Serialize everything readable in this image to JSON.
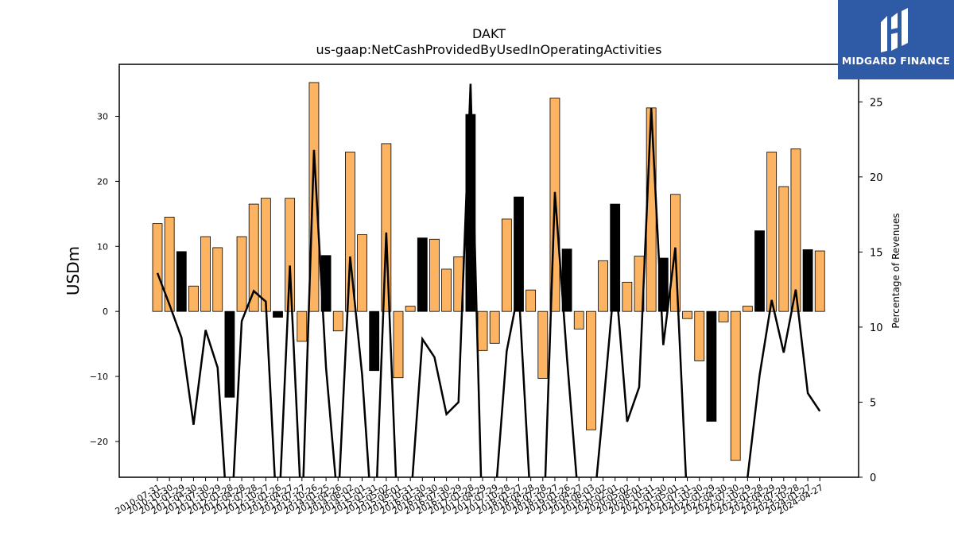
{
  "brand": {
    "name": "MIDGARD FINANCE",
    "background": "#2f5aa6"
  },
  "chart_data": {
    "type": "bar",
    "title": "DAKT",
    "subtitle": "us-gaap:NetCashProvidedByUsedInOperatingActivities",
    "ylabel": "USDm",
    "y2label": "Percentage of Revenues",
    "ylim": [
      -25.5,
      38
    ],
    "y2lim": [
      0,
      27.5
    ],
    "yticks": [
      -20,
      -10,
      0,
      10,
      20,
      30
    ],
    "y2ticks": [
      0,
      5,
      10,
      15,
      20,
      25
    ],
    "colors": {
      "bar_primary": "#fdb462",
      "bar_highlight": "#000000",
      "line": "#000000"
    },
    "categories": [
      "2010-07-31",
      "2010-10-30",
      "2011-01-29",
      "2011-04-30",
      "2011-07-30",
      "2011-10-29",
      "2012-01-28",
      "2012-04-28",
      "2012-07-28",
      "2012-10-27",
      "2013-01-26",
      "2013-04-27",
      "2013-07-27",
      "2013-10-26",
      "2014-01-25",
      "2014-04-26",
      "2014-08-02",
      "2014-11-01",
      "2015-01-31",
      "2015-05-02",
      "2015-08-01",
      "2015-10-31",
      "2016-01-30",
      "2016-04-30",
      "2016-07-30",
      "2016-10-29",
      "2017-01-28",
      "2017-04-29",
      "2017-07-29",
      "2017-10-28",
      "2018-01-27",
      "2018-04-28",
      "2018-07-28",
      "2018-10-27",
      "2019-01-26",
      "2019-04-27",
      "2019-08-03",
      "2019-11-02",
      "2020-02-01",
      "2020-05-02",
      "2020-08-01",
      "2020-10-31",
      "2021-01-30",
      "2021-05-01",
      "2021-07-31",
      "2021-10-30",
      "2022-01-29",
      "2022-04-30",
      "2022-07-30",
      "2022-10-29",
      "2023-01-28",
      "2023-04-29",
      "2023-07-29",
      "2023-10-28",
      "2024-01-27",
      "2024-04-27"
    ],
    "series": [
      {
        "kind": "bar",
        "values": [
          13.5,
          14.5,
          9.2,
          3.9,
          11.5,
          9.8,
          -13.2,
          11.5,
          16.5,
          17.4,
          -0.9,
          17.4,
          -4.6,
          35.2,
          8.6,
          -3.0,
          24.5,
          11.8,
          -9.1,
          25.8,
          -10.2,
          0.8,
          11.3,
          11.1,
          6.5,
          8.4,
          30.3,
          -6.0,
          -4.9,
          14.2,
          17.6,
          3.3,
          -10.3,
          32.8,
          9.6,
          -2.7,
          -18.2,
          7.8,
          16.5,
          4.5,
          8.5,
          31.3,
          8.2,
          18.0,
          -1.1,
          -7.6,
          -16.9,
          -1.6,
          -22.9,
          0.8,
          12.4,
          24.5,
          19.2,
          25.0,
          9.5,
          9.3
        ],
        "highlight": [
          false,
          false,
          true,
          false,
          false,
          false,
          true,
          false,
          false,
          false,
          true,
          false,
          false,
          false,
          true,
          false,
          false,
          false,
          true,
          false,
          false,
          false,
          true,
          false,
          false,
          false,
          true,
          false,
          false,
          false,
          true,
          false,
          false,
          false,
          true,
          false,
          false,
          false,
          true,
          false,
          false,
          false,
          true,
          false,
          false,
          false,
          true,
          false,
          false,
          false,
          true,
          false,
          false,
          false,
          true,
          false
        ]
      },
      {
        "kind": "line",
        "axis": "right",
        "values": [
          13.6,
          11.5,
          9.3,
          3.5,
          9.8,
          7.3,
          -5.0,
          10.4,
          12.4,
          11.7,
          -4.0,
          14.1,
          -3.0,
          21.8,
          7.3,
          -2.0,
          14.7,
          6.8,
          -5.0,
          16.3,
          -4.0,
          -2.0,
          9.2,
          8.0,
          4.2,
          5.0,
          26.2,
          -4.0,
          -2.0,
          8.4,
          12.5,
          -2.0,
          -5.0,
          19.0,
          8.0,
          -2.0,
          -4.0,
          4.5,
          13.6,
          3.7,
          6.0,
          24.6,
          8.8,
          15.3,
          -2.0,
          -3.0,
          -2.0,
          -2.0,
          -3.0,
          0.0,
          6.8,
          11.8,
          8.3,
          12.5,
          5.6,
          4.4
        ]
      }
    ]
  }
}
